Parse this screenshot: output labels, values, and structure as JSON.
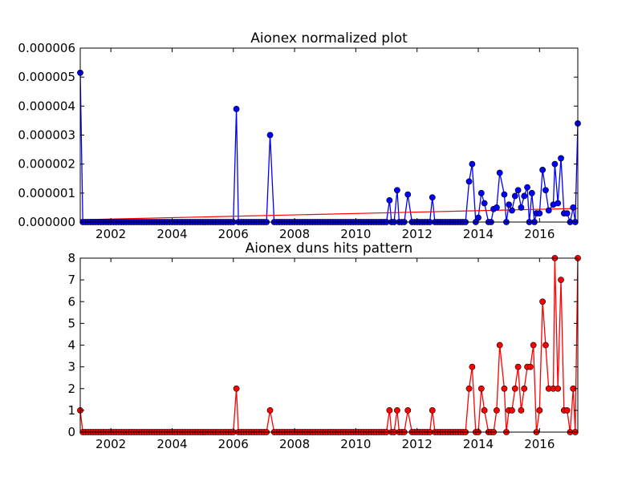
{
  "chart_data": [
    {
      "type": "line",
      "title": "Aionex normalized plot",
      "xlabel": "",
      "ylabel": "",
      "xlim": [
        2001.0,
        2017.25
      ],
      "ylim": [
        0,
        6e-06
      ],
      "x_ticks": [
        "2002",
        "2004",
        "2006",
        "2008",
        "2010",
        "2012",
        "2014",
        "2016"
      ],
      "x_tick_values": [
        2002,
        2004,
        2006,
        2008,
        2010,
        2012,
        2014,
        2016
      ],
      "y_ticks": [
        "0.000000",
        "0.000001",
        "0.000002",
        "0.000003",
        "0.000004",
        "0.000005",
        "0.000006"
      ],
      "y_tick_values": [
        0,
        1e-06,
        2e-06,
        3e-06,
        4e-06,
        5e-06,
        6e-06
      ],
      "colors": {
        "series": "#0000ff",
        "trend": "#ff0000"
      },
      "series": [
        {
          "points": [
            [
              2001.0,
              5.15e-06
            ],
            [
              2006.1,
              3.9e-06
            ],
            [
              2007.2,
              3e-06
            ],
            [
              2011.1,
              7.5e-07
            ],
            [
              2011.35,
              1.1e-06
            ],
            [
              2011.7,
              9.5e-07
            ],
            [
              2012.5,
              8.5e-07
            ],
            [
              2013.7,
              1.4e-06
            ],
            [
              2013.8,
              2e-06
            ],
            [
              2014.0,
              1.5e-07
            ],
            [
              2014.1,
              1e-06
            ],
            [
              2014.2,
              6.5e-07
            ],
            [
              2014.5,
              4.5e-07
            ],
            [
              2014.6,
              5e-07
            ],
            [
              2014.7,
              1.7e-06
            ],
            [
              2014.85,
              9.5e-07
            ],
            [
              2015.0,
              6e-07
            ],
            [
              2015.1,
              4e-07
            ],
            [
              2015.2,
              9e-07
            ],
            [
              2015.3,
              1.1e-06
            ],
            [
              2015.4,
              5e-07
            ],
            [
              2015.5,
              9e-07
            ],
            [
              2015.6,
              1.2e-06
            ],
            [
              2015.75,
              1e-06
            ],
            [
              2015.9,
              3e-07
            ],
            [
              2016.0,
              3e-07
            ],
            [
              2016.1,
              1.8e-06
            ],
            [
              2016.2,
              1.1e-06
            ],
            [
              2016.3,
              4e-07
            ],
            [
              2016.45,
              6e-07
            ],
            [
              2016.5,
              2e-06
            ],
            [
              2016.6,
              6.5e-07
            ],
            [
              2016.7,
              2.2e-06
            ],
            [
              2016.8,
              3e-07
            ],
            [
              2016.9,
              3e-07
            ],
            [
              2017.1,
              5e-07
            ],
            [
              2017.25,
              3.4e-06
            ]
          ]
        },
        {
          "points": [
            [
              2001.0,
              8e-08
            ],
            [
              2017.25,
              4.7e-07
            ]
          ]
        }
      ]
    },
    {
      "type": "line",
      "title": "Aionex duns hits pattern",
      "xlabel": "",
      "ylabel": "",
      "xlim": [
        2001.0,
        2017.25
      ],
      "ylim": [
        0,
        8
      ],
      "x_ticks": [
        "2002",
        "2004",
        "2006",
        "2008",
        "2010",
        "2012",
        "2014",
        "2016"
      ],
      "x_tick_values": [
        2002,
        2004,
        2006,
        2008,
        2010,
        2012,
        2014,
        2016
      ],
      "y_ticks": [
        "0",
        "1",
        "2",
        "3",
        "4",
        "5",
        "6",
        "7",
        "8"
      ],
      "y_tick_values": [
        0,
        1,
        2,
        3,
        4,
        5,
        6,
        7,
        8
      ],
      "colors": {
        "series": "#ff0000"
      },
      "series": [
        {
          "points": [
            [
              2001.0,
              1
            ],
            [
              2006.1,
              2
            ],
            [
              2007.2,
              1
            ],
            [
              2011.1,
              1
            ],
            [
              2011.35,
              1
            ],
            [
              2011.7,
              1
            ],
            [
              2012.5,
              1
            ],
            [
              2013.7,
              2
            ],
            [
              2013.8,
              3
            ],
            [
              2014.1,
              2
            ],
            [
              2014.2,
              1
            ],
            [
              2014.6,
              1
            ],
            [
              2014.7,
              4
            ],
            [
              2014.85,
              2
            ],
            [
              2015.0,
              1
            ],
            [
              2015.1,
              1
            ],
            [
              2015.2,
              2
            ],
            [
              2015.3,
              3
            ],
            [
              2015.4,
              1
            ],
            [
              2015.5,
              2
            ],
            [
              2015.6,
              3
            ],
            [
              2015.7,
              3
            ],
            [
              2015.8,
              4
            ],
            [
              2015.9,
              0
            ],
            [
              2016.0,
              1
            ],
            [
              2016.1,
              6
            ],
            [
              2016.2,
              4
            ],
            [
              2016.3,
              2
            ],
            [
              2016.45,
              2
            ],
            [
              2016.5,
              8
            ],
            [
              2016.6,
              2
            ],
            [
              2016.7,
              7
            ],
            [
              2016.8,
              1
            ],
            [
              2016.9,
              1
            ],
            [
              2017.1,
              2
            ],
            [
              2017.25,
              8
            ]
          ]
        }
      ]
    }
  ]
}
